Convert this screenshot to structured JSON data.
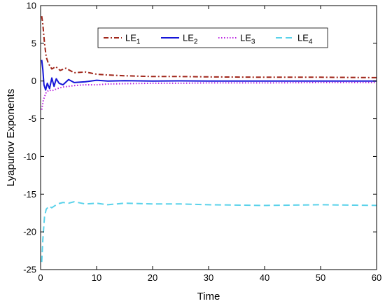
{
  "chart_data": {
    "type": "line",
    "title": "",
    "xlabel": "Time",
    "ylabel": "Lyapunov Exponents",
    "xlim": [
      0,
      60
    ],
    "ylim": [
      -25,
      10
    ],
    "xticks": [
      "0",
      "10",
      "20",
      "30",
      "40",
      "50",
      "60"
    ],
    "yticks": [
      "10",
      "5",
      "0",
      "-5",
      "-10",
      "-15",
      "-20",
      "-25"
    ],
    "grid": false,
    "legend_position": "top",
    "series": [
      {
        "name": "LE",
        "subscript": "1",
        "color": "#a0261a",
        "style": "dash-dot",
        "x": [
          0.2,
          0.4,
          0.7,
          1.0,
          1.4,
          2.0,
          2.7,
          3.5,
          4.5,
          6,
          8,
          10,
          12,
          15,
          20,
          25,
          30,
          40,
          50,
          60
        ],
        "y": [
          8.6,
          7.5,
          5.0,
          3.2,
          2.3,
          1.6,
          1.9,
          1.4,
          1.7,
          1.1,
          1.2,
          0.9,
          0.8,
          0.7,
          0.6,
          0.6,
          0.55,
          0.5,
          0.5,
          0.45
        ]
      },
      {
        "name": "LE",
        "subscript": "2",
        "color": "#1515d8",
        "style": "solid",
        "x": [
          0.2,
          0.4,
          0.6,
          0.9,
          1.2,
          1.6,
          2.0,
          2.4,
          2.8,
          3.3,
          4,
          5,
          6,
          8,
          10,
          12,
          15,
          20,
          25,
          30,
          40,
          50,
          60
        ],
        "y": [
          2.8,
          1.5,
          -0.5,
          -1.2,
          -0.3,
          -1.0,
          0.4,
          -0.7,
          0.3,
          -0.3,
          -0.5,
          0.2,
          -0.2,
          -0.1,
          0.1,
          0.0,
          0.05,
          0.0,
          0.02,
          0.0,
          0.0,
          0.0,
          0.0
        ]
      },
      {
        "name": "LE",
        "subscript": "3",
        "color": "#b81ce0",
        "style": "dotted",
        "x": [
          0.2,
          0.5,
          1.0,
          1.5,
          2.0,
          3.0,
          4.0,
          5,
          6,
          8,
          10,
          12,
          15,
          20,
          25,
          30,
          40,
          50,
          60
        ],
        "y": [
          -3.8,
          -2.5,
          -1.5,
          -1.2,
          -1.3,
          -1.0,
          -0.8,
          -0.7,
          -0.6,
          -0.5,
          -0.5,
          -0.4,
          -0.35,
          -0.3,
          -0.3,
          -0.25,
          -0.25,
          -0.2,
          -0.2
        ]
      },
      {
        "name": "LE",
        "subscript": "4",
        "color": "#5ad2ea",
        "style": "dashed",
        "x": [
          0.2,
          0.4,
          0.7,
          1.0,
          1.5,
          2.0,
          3.0,
          4.0,
          5,
          6,
          8,
          10,
          12,
          15,
          20,
          25,
          30,
          40,
          50,
          60
        ],
        "y": [
          -24.0,
          -21.0,
          -18.0,
          -17.0,
          -16.6,
          -16.8,
          -16.3,
          -16.1,
          -16.2,
          -16.0,
          -16.3,
          -16.2,
          -16.4,
          -16.2,
          -16.3,
          -16.3,
          -16.4,
          -16.5,
          -16.4,
          -16.5
        ]
      }
    ]
  }
}
